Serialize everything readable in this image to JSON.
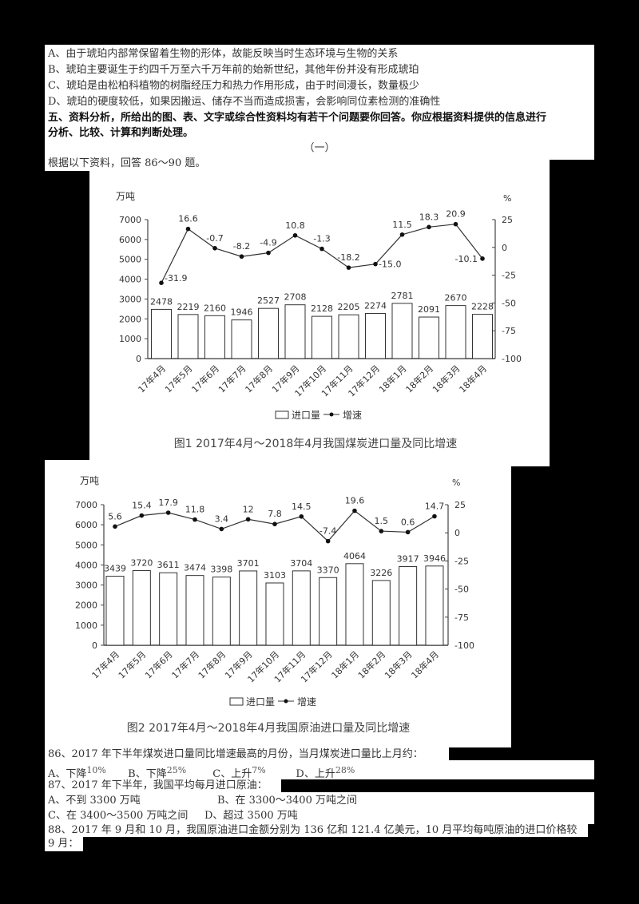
{
  "previous_question_options": [
    "A、由于琥珀内部常保留着生物的形体，故能反映当时生态环境与生物的关系",
    "B、琥珀主要诞生于约四千万至六千万年前的始新世纪，其他年份并没有形成琥珀",
    "C、琥珀是由松柏科植物的树脂经压力和热力作用形成，由于时间漫长，数量极少",
    "D、琥珀的硬度较低，如果因搬运、储存不当而造成损害，会影响同位素检测的准确性"
  ],
  "section": {
    "heading_line1": "五、资料分析，所给出的图、表、文字或综合性资料均有若干个问题要你回答。你应根据资料提供的信息进行",
    "heading_line2": "分析、比较、计算和判断处理。",
    "part_label": "（一）",
    "intro": "根据以下资料，回答 86～90 题。"
  },
  "chart_data": [
    {
      "type": "bar+line",
      "title": "图1 2017年4月～2018年4月我国煤炭进口量及同比增速",
      "categories": [
        "17年4月",
        "17年5月",
        "17年6月",
        "17年7月",
        "17年8月",
        "17年9月",
        "17年10月",
        "17年11月",
        "17年12月",
        "18年1月",
        "18年2月",
        "18年3月",
        "18年4月"
      ],
      "series": [
        {
          "name": "进口量",
          "type": "bar",
          "axis": "left",
          "values": [
            2478,
            2219,
            2160,
            1946,
            2527,
            2708,
            2128,
            2205,
            2274,
            2781,
            2091,
            2670,
            2228
          ]
        },
        {
          "name": "增速",
          "type": "line",
          "axis": "right",
          "values": [
            -31.9,
            16.6,
            -0.7,
            -8.2,
            -4.9,
            10.8,
            -1.3,
            -18.2,
            -15.0,
            11.5,
            18.3,
            20.9,
            -10.1
          ]
        }
      ],
      "ylabel_left": "万吨",
      "ylabel_right": "%",
      "ylim_left": [
        0,
        7000
      ],
      "yticks_left": [
        0,
        1000,
        2000,
        3000,
        4000,
        5000,
        6000,
        7000
      ],
      "ylim_right": [
        -100,
        25
      ],
      "yticks_right": [
        25,
        0,
        -25,
        -50,
        -75,
        -100
      ],
      "legend": [
        "进口量",
        "增速"
      ],
      "legend_position": "bottom",
      "grid": false
    },
    {
      "type": "bar+line",
      "title": "图2 2017年4月～2018年4月我国原油进口量及同比增速",
      "categories": [
        "17年4月",
        "17年5月",
        "17年6月",
        "17年7月",
        "17年8月",
        "17年9月",
        "17年10月",
        "17年11月",
        "17年12月",
        "18年1月",
        "18年2月",
        "18年3月",
        "18年4月"
      ],
      "series": [
        {
          "name": "进口量",
          "type": "bar",
          "axis": "left",
          "values": [
            3439,
            3720,
            3611,
            3474,
            3398,
            3701,
            3103,
            3704,
            3370,
            4064,
            3226,
            3917,
            3946
          ]
        },
        {
          "name": "增速",
          "type": "line",
          "axis": "right",
          "values": [
            5.6,
            15.4,
            17.9,
            11.8,
            3.4,
            12,
            7.8,
            14.5,
            -7.4,
            19.6,
            1.5,
            0.6,
            14.7
          ]
        }
      ],
      "ylabel_left": "万吨",
      "ylabel_right": "%",
      "ylim_left": [
        0,
        7000
      ],
      "yticks_left": [
        0,
        1000,
        2000,
        3000,
        4000,
        5000,
        6000,
        7000
      ],
      "ylim_right": [
        -100,
        25
      ],
      "yticks_right": [
        25,
        0,
        -25,
        -50,
        -75,
        -100
      ],
      "legend": [
        "进口量",
        "增速"
      ],
      "legend_position": "bottom",
      "grid": false
    }
  ],
  "value_labels": {
    "chart1_line": [
      "-31.9",
      "16.6",
      "-0.7",
      "-8.2",
      "-4.9",
      "10.8",
      "-1.3",
      "-18.2",
      "-15.0",
      "11.5",
      "18.3",
      "20.9",
      "-10.1"
    ],
    "chart2_line": [
      "5.6",
      "15.4",
      "17.9",
      "11.8",
      "3.4",
      "12",
      "7.8",
      "14.5",
      "-7.4",
      "19.6",
      "1.5",
      "0.6",
      "14.7"
    ]
  },
  "questions": [
    {
      "number": "86",
      "stem": "86、2017 年下半年煤炭进口量同比增速最高的月份，当月煤炭进口量比上月约：",
      "options": [
        {
          "label": "A、下降",
          "value": "10%"
        },
        {
          "label": "B、下降",
          "value": "25%"
        },
        {
          "label": "C、上升",
          "value": "7%"
        },
        {
          "label": "D、上升",
          "value": "28%"
        }
      ]
    },
    {
      "number": "87",
      "stem": "87、2017 年下半年，我国平均每月进口原油：",
      "options": [
        {
          "label": "A、不到 3300 万吨"
        },
        {
          "label": "B、在 3300～3400 万吨之间"
        },
        {
          "label": "C、在 3400～3500 万吨之间"
        },
        {
          "label": "D、超过 3500 万吨"
        }
      ]
    },
    {
      "number": "88",
      "stem_line1": "88、2017 年 9 月和 10 月，我国原油进口金额分别为 136 亿和 121.4 亿美元，10 月平均每吨原油的进口价格较",
      "stem_line2": "9 月："
    }
  ],
  "colors": {
    "background": "#000000",
    "paper": "#ffffff",
    "text": "#333333",
    "chart_stroke": "#333333"
  }
}
